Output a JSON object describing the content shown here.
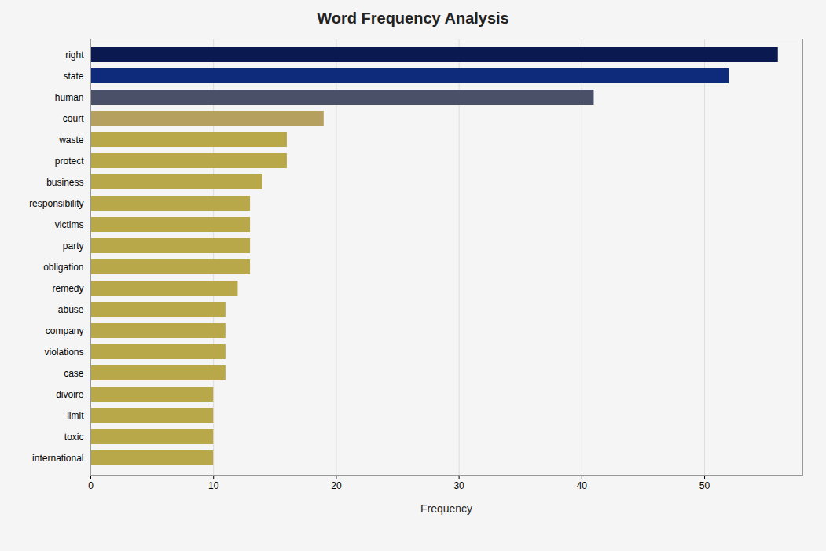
{
  "chart_data": {
    "type": "bar",
    "orientation": "horizontal",
    "title": "Word Frequency Analysis",
    "xlabel": "Frequency",
    "categories": [
      "international",
      "toxic",
      "limit",
      "divoire",
      "case",
      "violations",
      "company",
      "abuse",
      "remedy",
      "obligation",
      "party",
      "victims",
      "responsibility",
      "business",
      "protect",
      "waste",
      "court",
      "human",
      "state",
      "right"
    ],
    "values": [
      10,
      10,
      10,
      10,
      11,
      11,
      11,
      11,
      12,
      13,
      13,
      13,
      13,
      14,
      16,
      16,
      19,
      41,
      52,
      56
    ],
    "colors": [
      "#b8a84a",
      "#b8a84a",
      "#b8a84a",
      "#b8a84a",
      "#b8a84a",
      "#b8a84a",
      "#b8a84a",
      "#b8a84a",
      "#b8a84a",
      "#b8a84a",
      "#b8a84a",
      "#b8a84a",
      "#b8a84a",
      "#b8a84a",
      "#b8a84a",
      "#b8a84a",
      "#b6a060",
      "#4a5068",
      "#0d2b7a",
      "#0a1a50"
    ],
    "xlim": [
      0,
      58
    ],
    "xticks": [
      0,
      10,
      20,
      30,
      40,
      50
    ],
    "grid": true
  }
}
